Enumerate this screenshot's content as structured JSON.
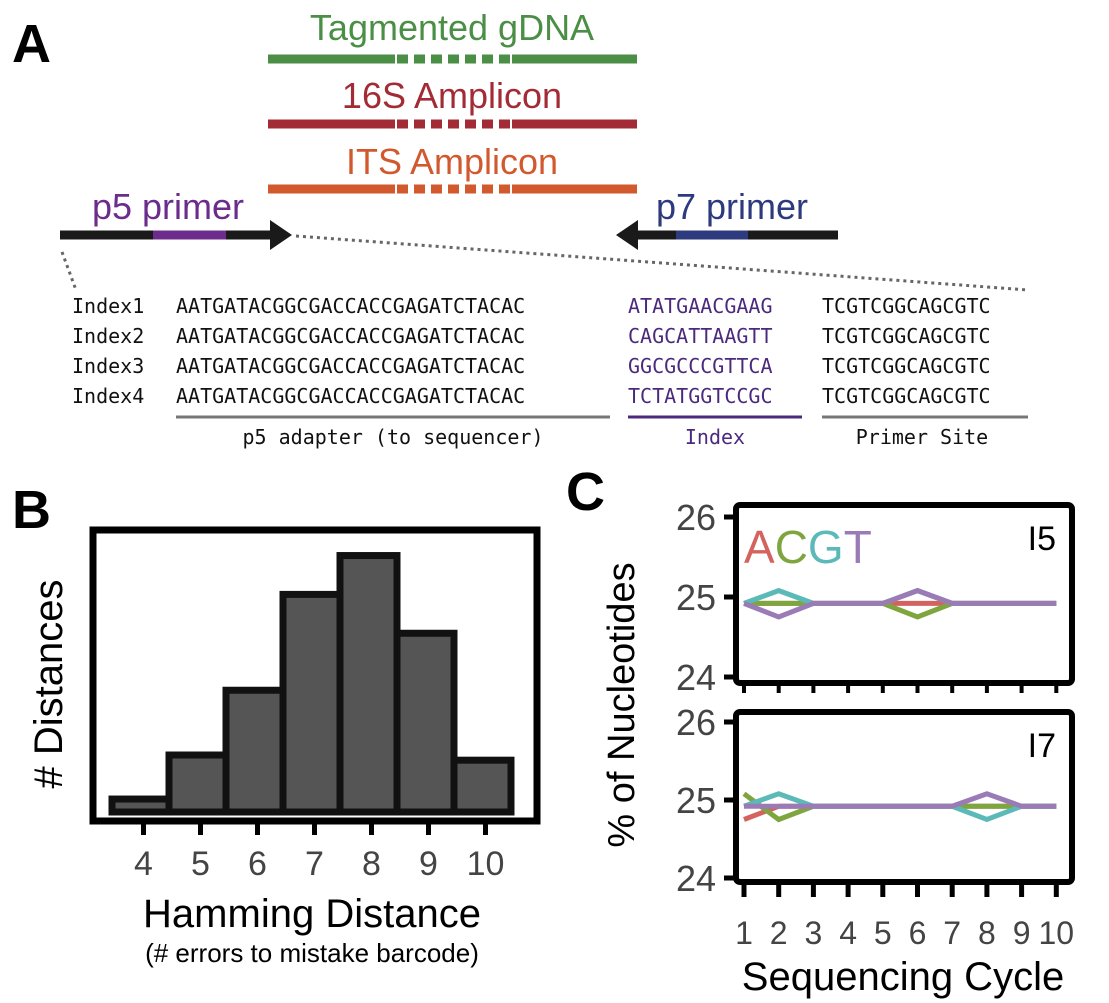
{
  "panel_a": {
    "label": "A",
    "inserts": [
      {
        "label": "Tagmented gDNA",
        "color": "#4a8f45"
      },
      {
        "label": "16S Amplicon",
        "color": "#a32b35"
      },
      {
        "label": "ITS Amplicon",
        "color": "#d2592e"
      }
    ],
    "p5_primer": {
      "label": "p5 primer",
      "color": "#6b2c8b"
    },
    "p7_primer": {
      "label": "p7 primer",
      "color": "#2d3a7d"
    },
    "index_rows": [
      {
        "name": "Index1",
        "adapter": "AATGATACGGCGACCACCGAGATCTACAC",
        "index": "ATATGAACGAAG",
        "primer": "TCGTCGGCAGCGTC"
      },
      {
        "name": "Index2",
        "adapter": "AATGATACGGCGACCACCGAGATCTACAC",
        "index": "CAGCATTAAGTT",
        "primer": "TCGTCGGCAGCGTC"
      },
      {
        "name": "Index3",
        "adapter": "AATGATACGGCGACCACCGAGATCTACAC",
        "index": "GGCGCCCGTTCA",
        "primer": "TCGTCGGCAGCGTC"
      },
      {
        "name": "Index4",
        "adapter": "AATGATACGGCGACCACCGAGATCTACAC",
        "index": "TCTATGGTCCGC",
        "primer": "TCGTCGGCAGCGTC"
      }
    ],
    "segment_labels": {
      "adapter": "p5 adapter (to sequencer)",
      "index": "Index",
      "primer": "Primer Site"
    },
    "index_color": "#4b2a7e"
  },
  "panel_b": {
    "label": "B"
  },
  "panel_c": {
    "label": "C"
  },
  "chart_data": [
    {
      "type": "bar",
      "categories": [
        "4",
        "5",
        "6",
        "7",
        "8",
        "9",
        "10"
      ],
      "values": [
        0.5,
        2.2,
        4.7,
        8.4,
        9.9,
        6.9,
        2.0
      ],
      "xlabel": "Hamming Distance",
      "xlabel_sub": "(# errors to mistake barcode)",
      "ylabel": "# Distances",
      "ylim": [
        0,
        10.5
      ],
      "bar_color": "#555555",
      "yticks": "none"
    },
    {
      "type": "line",
      "panel_title": "I5",
      "x": [
        1,
        2,
        3,
        4,
        5,
        6,
        7,
        8,
        9,
        10
      ],
      "ylim": [
        24,
        26
      ],
      "yticks": [
        24,
        25,
        26
      ],
      "series": [
        {
          "name": "A",
          "color": "#d4635f",
          "values": [
            24.92,
            24.92,
            24.92,
            24.92,
            24.92,
            24.92,
            24.92,
            24.92,
            24.92,
            24.92
          ]
        },
        {
          "name": "C",
          "color": "#7fa53f",
          "values": [
            24.92,
            24.92,
            24.92,
            24.92,
            24.92,
            24.75,
            24.92,
            24.92,
            24.92,
            24.92
          ]
        },
        {
          "name": "G",
          "color": "#5bbab8",
          "values": [
            24.92,
            25.08,
            24.92,
            24.92,
            24.92,
            25.08,
            24.92,
            24.92,
            24.92,
            24.92
          ]
        },
        {
          "name": "T",
          "color": "#9a7bb6",
          "values": [
            24.92,
            24.75,
            24.92,
            24.92,
            24.92,
            25.08,
            24.92,
            24.92,
            24.92,
            24.92
          ]
        }
      ]
    },
    {
      "type": "line",
      "panel_title": "I7",
      "x": [
        1,
        2,
        3,
        4,
        5,
        6,
        7,
        8,
        9,
        10
      ],
      "ylim": [
        24,
        26
      ],
      "yticks": [
        24,
        25,
        26
      ],
      "xlabel": "Sequencing Cycle",
      "ylabel": "% of Nucleotides",
      "series": [
        {
          "name": "A",
          "color": "#d4635f",
          "values": [
            24.75,
            24.92,
            24.92,
            24.92,
            24.92,
            24.92,
            24.92,
            24.92,
            24.92,
            24.92
          ]
        },
        {
          "name": "C",
          "color": "#7fa53f",
          "values": [
            25.08,
            24.75,
            24.92,
            24.92,
            24.92,
            24.92,
            24.92,
            24.92,
            24.92,
            24.92
          ]
        },
        {
          "name": "G",
          "color": "#5bbab8",
          "values": [
            24.92,
            25.08,
            24.92,
            24.92,
            24.92,
            24.92,
            24.92,
            24.75,
            24.92,
            24.92
          ]
        },
        {
          "name": "T",
          "color": "#9a7bb6",
          "values": [
            24.92,
            24.92,
            24.92,
            24.92,
            24.92,
            24.92,
            24.92,
            25.08,
            24.92,
            24.92
          ]
        }
      ]
    }
  ]
}
